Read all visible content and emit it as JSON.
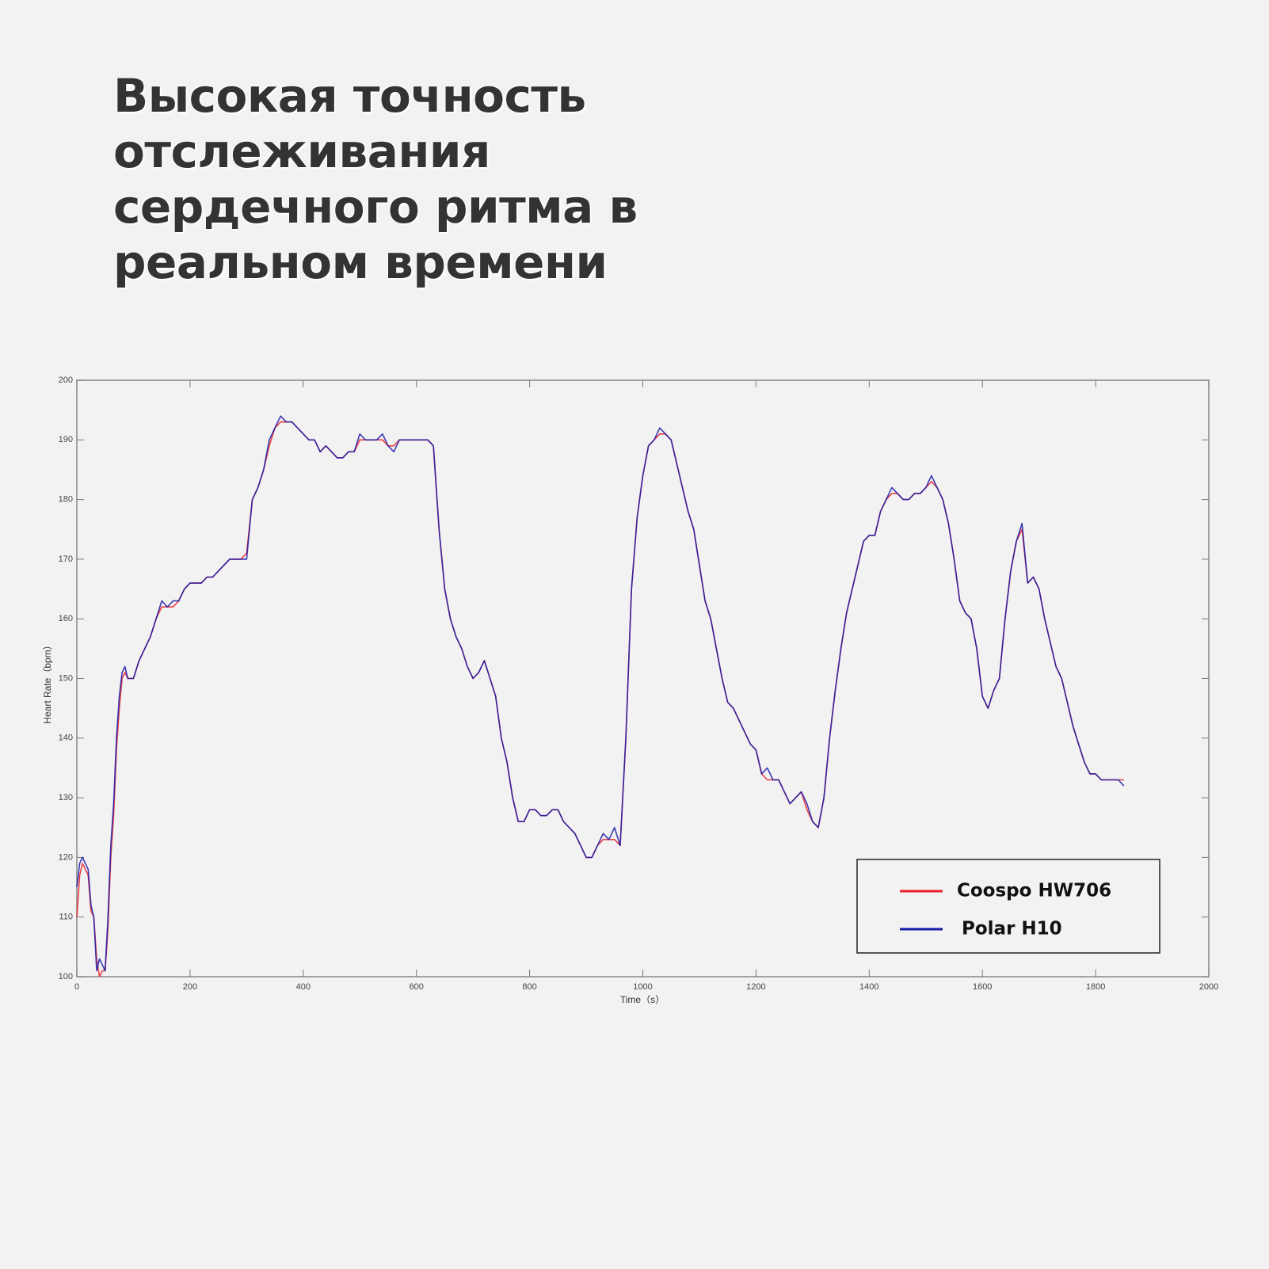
{
  "chart_data": {
    "type": "line",
    "title": "Высокая точность отслеживания сердечного ритма в реальном времени",
    "x_label": "Time（s）",
    "y_label": "Heart Rate（bpm）",
    "xlim": [
      0,
      2000
    ],
    "xticks": [
      0,
      200,
      400,
      600,
      800,
      1000,
      1200,
      1400,
      1600,
      1800,
      2000
    ],
    "ylim": [
      100,
      200
    ],
    "yticks": [
      100,
      110,
      120,
      130,
      140,
      150,
      160,
      170,
      180,
      190,
      200
    ],
    "grid": false,
    "legend": "lower right",
    "x": [
      0,
      5,
      10,
      15,
      20,
      25,
      30,
      35,
      40,
      45,
      50,
      55,
      60,
      65,
      70,
      75,
      80,
      85,
      90,
      100,
      110,
      120,
      130,
      140,
      150,
      160,
      170,
      180,
      190,
      200,
      210,
      220,
      230,
      240,
      250,
      260,
      270,
      280,
      290,
      300,
      310,
      320,
      330,
      340,
      350,
      360,
      370,
      380,
      390,
      400,
      410,
      420,
      430,
      440,
      450,
      460,
      470,
      480,
      490,
      500,
      510,
      520,
      530,
      540,
      550,
      560,
      570,
      580,
      590,
      600,
      610,
      620,
      630,
      640,
      650,
      660,
      670,
      680,
      690,
      700,
      710,
      720,
      730,
      740,
      750,
      760,
      770,
      780,
      790,
      800,
      810,
      820,
      830,
      840,
      850,
      860,
      870,
      880,
      890,
      900,
      910,
      920,
      930,
      940,
      950,
      960,
      970,
      980,
      990,
      1000,
      1010,
      1020,
      1030,
      1040,
      1050,
      1060,
      1070,
      1080,
      1090,
      1100,
      1110,
      1120,
      1130,
      1140,
      1150,
      1160,
      1170,
      1180,
      1190,
      1200,
      1210,
      1220,
      1230,
      1240,
      1250,
      1260,
      1270,
      1280,
      1290,
      1300,
      1310,
      1320,
      1330,
      1340,
      1350,
      1360,
      1370,
      1380,
      1390,
      1400,
      1410,
      1420,
      1430,
      1440,
      1450,
      1460,
      1470,
      1480,
      1490,
      1500,
      1510,
      1520,
      1530,
      1540,
      1550,
      1560,
      1570,
      1580,
      1590,
      1600,
      1610,
      1620,
      1630,
      1640,
      1650,
      1660,
      1670,
      1680,
      1690,
      1700,
      1710,
      1720,
      1730,
      1740,
      1750,
      1760,
      1770,
      1780,
      1790,
      1800,
      1810,
      1820,
      1830,
      1840,
      1850
    ],
    "series": [
      {
        "name": "Coospo HW706",
        "color": "#e8202a",
        "values": [
          110,
          117,
          119,
          118,
          117,
          111,
          110,
          103,
          100,
          101,
          101,
          108,
          120,
          127,
          138,
          145,
          150,
          151,
          150,
          150,
          153,
          155,
          157,
          160,
          162,
          162,
          162,
          163,
          165,
          166,
          166,
          166,
          167,
          167,
          168,
          169,
          170,
          170,
          170,
          171,
          180,
          182,
          185,
          189,
          192,
          193,
          193,
          193,
          192,
          191,
          190,
          190,
          188,
          189,
          188,
          187,
          187,
          188,
          188,
          190,
          190,
          190,
          190,
          190,
          189,
          189,
          190,
          190,
          190,
          190,
          190,
          190,
          189,
          175,
          165,
          160,
          157,
          155,
          152,
          150,
          151,
          153,
          150,
          147,
          140,
          136,
          130,
          126,
          126,
          128,
          128,
          127,
          127,
          128,
          128,
          126,
          125,
          124,
          122,
          120,
          120,
          122,
          123,
          123,
          123,
          122,
          140,
          165,
          177,
          184,
          189,
          190,
          191,
          191,
          190,
          186,
          182,
          178,
          175,
          169,
          163,
          160,
          155,
          150,
          146,
          145,
          143,
          141,
          139,
          138,
          134,
          133,
          133,
          133,
          131,
          129,
          130,
          131,
          128,
          126,
          125,
          130,
          140,
          148,
          155,
          161,
          165,
          169,
          173,
          174,
          174,
          178,
          180,
          181,
          181,
          180,
          180,
          181,
          181,
          182,
          183,
          182,
          180,
          176,
          170,
          163,
          161,
          160,
          155,
          147,
          145,
          148,
          150,
          160,
          168,
          173,
          175,
          166,
          167,
          165,
          160,
          156,
          152,
          150,
          146,
          142,
          139,
          136,
          134,
          134,
          133,
          133,
          133,
          133,
          133
        ]
      },
      {
        "name": "Polar H10",
        "color": "#1a1aa8",
        "values": [
          115,
          119,
          120,
          119,
          118,
          112,
          110,
          101,
          103,
          102,
          101,
          110,
          122,
          129,
          140,
          147,
          151,
          152,
          150,
          150,
          153,
          155,
          157,
          160,
          163,
          162,
          163,
          163,
          165,
          166,
          166,
          166,
          167,
          167,
          168,
          169,
          170,
          170,
          170,
          170,
          180,
          182,
          185,
          190,
          192,
          194,
          193,
          193,
          192,
          191,
          190,
          190,
          188,
          189,
          188,
          187,
          187,
          188,
          188,
          191,
          190,
          190,
          190,
          191,
          189,
          188,
          190,
          190,
          190,
          190,
          190,
          190,
          189,
          175,
          165,
          160,
          157,
          155,
          152,
          150,
          151,
          153,
          150,
          147,
          140,
          136,
          130,
          126,
          126,
          128,
          128,
          127,
          127,
          128,
          128,
          126,
          125,
          124,
          122,
          120,
          120,
          122,
          124,
          123,
          125,
          122,
          140,
          165,
          177,
          184,
          189,
          190,
          192,
          191,
          190,
          186,
          182,
          178,
          175,
          169,
          163,
          160,
          155,
          150,
          146,
          145,
          143,
          141,
          139,
          138,
          134,
          135,
          133,
          133,
          131,
          129,
          130,
          131,
          129,
          126,
          125,
          130,
          140,
          148,
          155,
          161,
          165,
          169,
          173,
          174,
          174,
          178,
          180,
          182,
          181,
          180,
          180,
          181,
          181,
          182,
          184,
          182,
          180,
          176,
          170,
          163,
          161,
          160,
          155,
          147,
          145,
          148,
          150,
          160,
          168,
          173,
          176,
          166,
          167,
          165,
          160,
          156,
          152,
          150,
          146,
          142,
          139,
          136,
          134,
          134,
          133,
          133,
          133,
          133,
          132
        ]
      }
    ]
  }
}
